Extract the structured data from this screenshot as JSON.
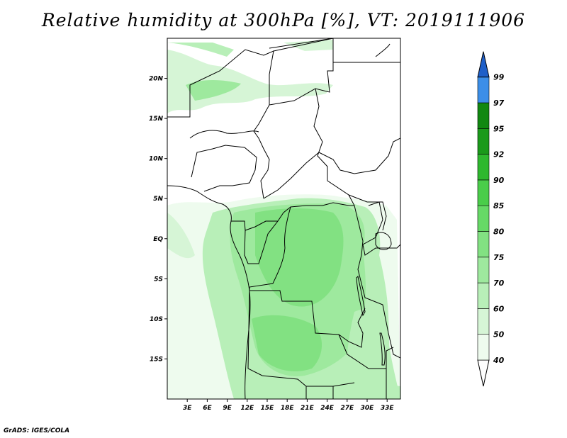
{
  "map": {
    "title": "Relative humidity at 300hPa [%], VT: 2019111906",
    "credit": "GrADS: IGES/COLA",
    "lat_ticks": [
      {
        "value": 20,
        "label": "20N"
      },
      {
        "value": 15,
        "label": "15N"
      },
      {
        "value": 10,
        "label": "10N"
      },
      {
        "value": 5,
        "label": "5N"
      },
      {
        "value": 0,
        "label": "EQ"
      },
      {
        "value": -5,
        "label": "5S"
      },
      {
        "value": -10,
        "label": "10S"
      },
      {
        "value": -15,
        "label": "15S"
      }
    ],
    "lon_ticks": [
      {
        "value": 3,
        "label": "3E"
      },
      {
        "value": 6,
        "label": "6E"
      },
      {
        "value": 9,
        "label": "9E"
      },
      {
        "value": 12,
        "label": "12E"
      },
      {
        "value": 15,
        "label": "15E"
      },
      {
        "value": 18,
        "label": "18E"
      },
      {
        "value": 21,
        "label": "21E"
      },
      {
        "value": 24,
        "label": "24E"
      },
      {
        "value": 27,
        "label": "27E"
      },
      {
        "value": 30,
        "label": "30E"
      },
      {
        "value": 33,
        "label": "33E"
      }
    ],
    "extent": {
      "lon": [
        0,
        35
      ],
      "lat": [
        -20,
        25
      ]
    }
  },
  "colorbar": {
    "levels": [
      {
        "label": "40",
        "color": "#eefbee"
      },
      {
        "label": "50",
        "color": "#d6f5d6"
      },
      {
        "label": "60",
        "color": "#b8efb8"
      },
      {
        "label": "70",
        "color": "#9ee99e"
      },
      {
        "label": "75",
        "color": "#82e182"
      },
      {
        "label": "80",
        "color": "#66d966"
      },
      {
        "label": "85",
        "color": "#4acd4a"
      },
      {
        "label": "90",
        "color": "#2eb82e"
      },
      {
        "label": "92",
        "color": "#1a9a1a"
      },
      {
        "label": "95",
        "color": "#118811"
      },
      {
        "label": "97",
        "color": "#3c8ee8"
      },
      {
        "label": "99",
        "color": "#1f6fd6"
      }
    ],
    "top_color": "#1f5fc8"
  }
}
